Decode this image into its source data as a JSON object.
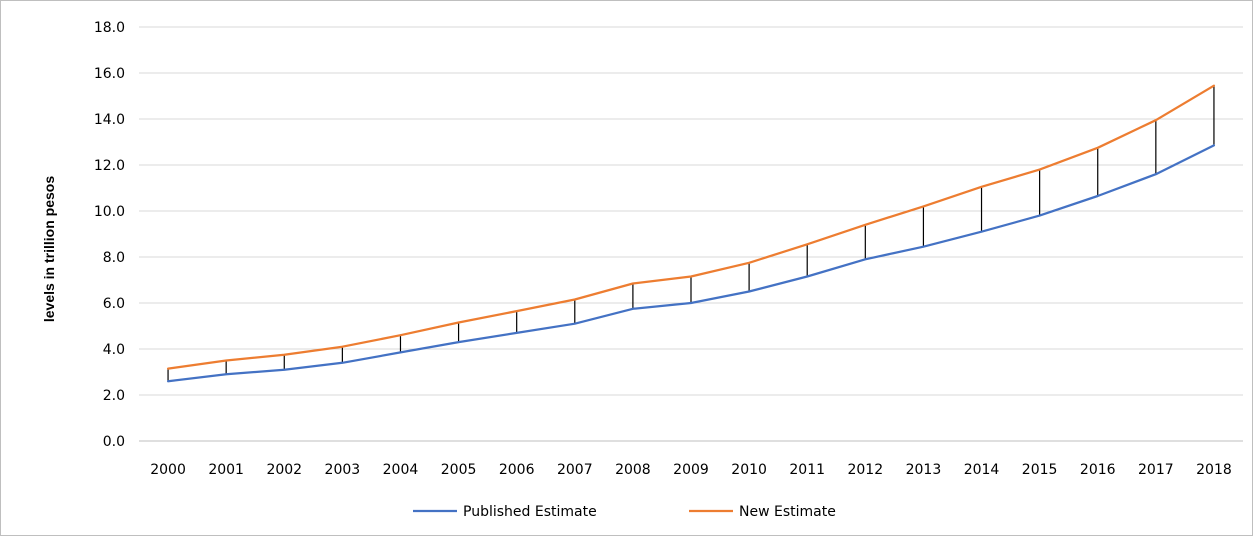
{
  "chart_data": {
    "type": "line",
    "title": "",
    "xlabel": "",
    "ylabel": "levels in trillion pesos",
    "ylim": [
      0,
      18
    ],
    "yticks": [
      "0.0",
      "2.0",
      "4.0",
      "6.0",
      "8.0",
      "10.0",
      "12.0",
      "14.0",
      "16.0",
      "18.0"
    ],
    "grid": true,
    "legend_position": "bottom",
    "drop_lines": true,
    "categories": [
      "2000",
      "2001",
      "2002",
      "2003",
      "2004",
      "2005",
      "2006",
      "2007",
      "2008",
      "2009",
      "2010",
      "2011",
      "2012",
      "2013",
      "2014",
      "2015",
      "2016",
      "2017",
      "2018"
    ],
    "series": [
      {
        "name": "Published Estimate",
        "color": "#4472c4",
        "values": [
          2.6,
          2.9,
          3.1,
          3.4,
          3.85,
          4.3,
          4.7,
          5.1,
          5.75,
          6.0,
          6.5,
          7.15,
          7.9,
          8.45,
          9.1,
          9.8,
          10.65,
          11.6,
          12.85
        ]
      },
      {
        "name": "New Estimate",
        "color": "#ed7d31",
        "values": [
          3.15,
          3.5,
          3.75,
          4.1,
          4.6,
          5.15,
          5.65,
          6.15,
          6.85,
          7.15,
          7.75,
          8.55,
          9.4,
          10.2,
          11.05,
          11.8,
          12.75,
          13.95,
          15.45
        ]
      }
    ]
  }
}
